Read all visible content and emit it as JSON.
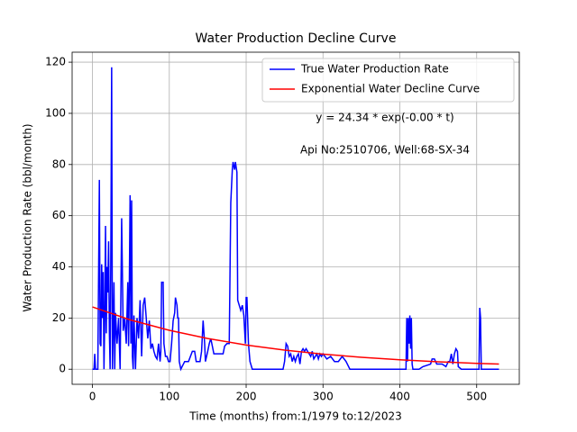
{
  "chart_data": {
    "type": "line",
    "title": "Water Production Decline Curve",
    "xlabel": "Time (months) from:1/1979 to:12/2023",
    "ylabel": "Water Production Rate (bbl/month)",
    "annotations": [
      "y = 24.34 * exp(-0.00 * t)",
      "Api No:2510706, Well:68-SX-34"
    ],
    "xlim": [
      -26.45,
      555.45
    ],
    "ylim": [
      -5.9,
      123.9
    ],
    "xticks": [
      0,
      100,
      200,
      300,
      400,
      500
    ],
    "yticks": [
      0,
      20,
      40,
      60,
      80,
      100,
      120
    ],
    "grid": true,
    "legend": "upper right",
    "series": [
      {
        "name": "True Water Production Rate",
        "color": "#0000ff",
        "x": [
          0,
          2,
          3,
          4,
          7,
          9,
          10,
          11,
          12,
          13,
          14,
          15,
          16,
          17,
          18,
          19,
          20,
          21,
          22,
          23,
          24,
          25,
          26,
          27,
          28,
          29,
          30,
          32,
          34,
          36,
          38,
          40,
          42,
          44,
          46,
          47,
          48,
          49,
          50,
          51,
          52,
          53,
          54,
          56,
          58,
          60,
          62,
          64,
          66,
          68,
          70,
          72,
          74,
          76,
          78,
          80,
          82,
          84,
          86,
          88,
          89,
          90,
          92,
          93,
          95,
          97,
          99,
          101,
          103,
          105,
          107,
          108,
          110,
          111,
          112,
          113,
          115,
          120,
          125,
          130,
          133,
          135,
          140,
          142,
          144,
          146,
          147,
          150,
          152,
          154,
          156,
          158,
          165,
          170,
          172,
          175,
          178,
          180,
          182,
          183,
          185,
          186,
          188,
          189,
          191,
          193,
          195,
          197,
          199,
          200,
          201,
          203,
          205,
          208,
          220,
          230,
          240,
          248,
          250,
          252,
          254,
          256,
          258,
          260,
          262,
          264,
          266,
          268,
          270,
          272,
          274,
          276,
          278,
          280,
          282,
          284,
          286,
          288,
          290,
          292,
          294,
          296,
          298,
          300,
          305,
          310,
          315,
          320,
          325,
          330,
          335,
          350,
          380,
          408,
          409,
          410,
          411,
          412,
          413,
          414,
          415,
          416,
          417,
          425,
          430,
          440,
          442,
          445,
          448,
          455,
          460,
          463,
          465,
          467,
          469,
          471,
          473,
          475,
          476,
          480,
          490,
          500,
          503,
          504,
          505,
          506,
          515,
          529
        ],
        "values": [
          0,
          0,
          6,
          0,
          0,
          74,
          10,
          9,
          41,
          20,
          38,
          0,
          20,
          56,
          14,
          40,
          30,
          50,
          15,
          0,
          50,
          118,
          0,
          15,
          34,
          0,
          22,
          10,
          20,
          0,
          59,
          15,
          20,
          10,
          34,
          9,
          34,
          68,
          10,
          66,
          5,
          0,
          21,
          0,
          20,
          12,
          27,
          5,
          25,
          28,
          20,
          12,
          19,
          8,
          10,
          7,
          5,
          4,
          10,
          3,
          7,
          34,
          34,
          10,
          5,
          5,
          3,
          3,
          10,
          19,
          22,
          28,
          25,
          20,
          20,
          3,
          0,
          3,
          3,
          7,
          7,
          3,
          3,
          7,
          19,
          10,
          3,
          7,
          10,
          12,
          9,
          6,
          6,
          6,
          9,
          10,
          10,
          65,
          78,
          81,
          78,
          81,
          77,
          27,
          25,
          23,
          25,
          21,
          10,
          28,
          28,
          10,
          3,
          0,
          0,
          0,
          0,
          0,
          3,
          10,
          9,
          5,
          6,
          3,
          5,
          3,
          5,
          6,
          2,
          7,
          8,
          7,
          8,
          7,
          6,
          5,
          7,
          4,
          5,
          6,
          4,
          6,
          5,
          6,
          4,
          5,
          3,
          3,
          5,
          3,
          0,
          0,
          0,
          0,
          20,
          3,
          20,
          10,
          21,
          8,
          20,
          2,
          0,
          0,
          1,
          2,
          4,
          4,
          2,
          2,
          1,
          3,
          3,
          6,
          2,
          6,
          8,
          7,
          1,
          0,
          0,
          0,
          0,
          24,
          20,
          0,
          0,
          0
        ]
      },
      {
        "name": "Exponential Water Decline Curve",
        "color": "#ff0000",
        "x": [
          0,
          50,
          100,
          150,
          200,
          250,
          300,
          350,
          400,
          450,
          500,
          529
        ],
        "values": [
          24.34,
          19.2,
          15.2,
          12.0,
          9.46,
          7.47,
          5.9,
          4.66,
          3.68,
          2.9,
          2.29,
          2.0
        ]
      }
    ]
  }
}
